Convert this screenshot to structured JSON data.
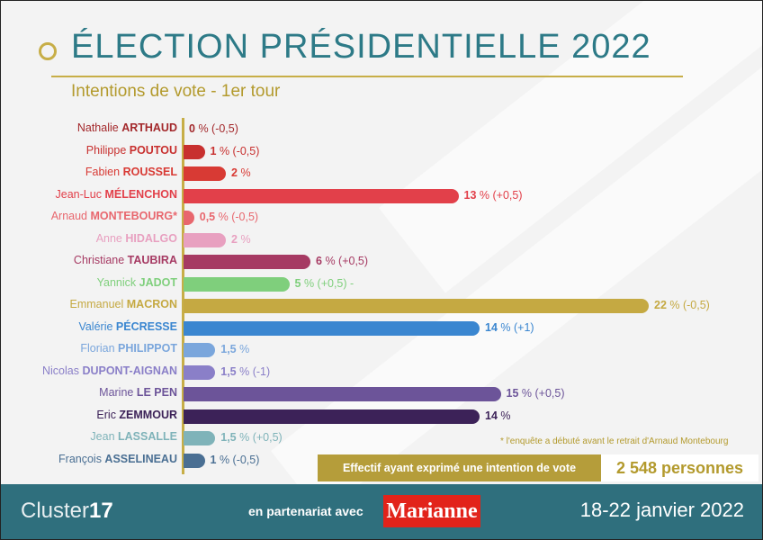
{
  "header": {
    "title": "ÉLECTION PRÉSIDENTIELLE 2022",
    "subtitle": "Intentions de vote - 1er tour"
  },
  "chart_data": {
    "type": "bar",
    "orientation": "horizontal",
    "xlim": [
      0,
      22
    ],
    "categories": [
      "Nathalie ARTHAUD",
      "Philippe POUTOU",
      "Fabien ROUSSEL",
      "Jean-Luc MÉLENCHON",
      "Arnaud MONTEBOURG*",
      "Anne HIDALGO",
      "Christiane TAUBIRA",
      "Yannick JADOT",
      "Emmanuel MACRON",
      "Valérie PÉCRESSE",
      "Florian PHILIPPOT",
      "Nicolas DUPONT-AIGNAN",
      "Marine LE PEN",
      "Eric ZEMMOUR",
      "Jean LASSALLE",
      "François ASSELINEAU"
    ],
    "values": [
      0,
      1,
      2,
      13,
      0.5,
      2,
      6,
      5,
      22,
      14,
      1.5,
      1.5,
      15,
      14,
      1.5,
      1
    ]
  },
  "candidates": [
    {
      "first": "Nathalie",
      "last": "ARTHAUD",
      "pct": "0",
      "delta": "% (-0,5)",
      "color": "#a3282b"
    },
    {
      "first": "Philippe",
      "last": "POUTOU",
      "pct": "1",
      "delta": "% (-0,5)",
      "color": "#c8302f"
    },
    {
      "first": "Fabien",
      "last": "ROUSSEL",
      "pct": "2",
      "delta": "%",
      "color": "#d83a34"
    },
    {
      "first": "Jean-Luc",
      "last": "MÉLENCHON",
      "pct": "13",
      "delta": "% (+0,5)",
      "color": "#e2404a"
    },
    {
      "first": "Arnaud",
      "last": "MONTEBOURG*",
      "pct": "0,5",
      "delta": "% (-0,5)",
      "color": "#e8676e"
    },
    {
      "first": "Anne",
      "last": "HIDALGO",
      "pct": "2",
      "delta": "%",
      "color": "#e8a0c0"
    },
    {
      "first": "Christiane",
      "last": "TAUBIRA",
      "pct": "6",
      "delta": "% (+0,5)",
      "color": "#a63a63"
    },
    {
      "first": "Yannick",
      "last": "JADOT",
      "pct": "5",
      "delta": "% (+0,5) -",
      "color": "#7fcf7c"
    },
    {
      "first": "Emmanuel",
      "last": "MACRON",
      "pct": "22",
      "delta": "% (-0,5)",
      "color": "#c5a942"
    },
    {
      "first": "Valérie",
      "last": "PÉCRESSE",
      "pct": "14",
      "delta": "% (+1)",
      "color": "#3a86d0"
    },
    {
      "first": "Florian",
      "last": "PHILIPPOT",
      "pct": "1,5",
      "delta": "%",
      "color": "#7aa6dc"
    },
    {
      "first": "Nicolas",
      "last": "DUPONT-AIGNAN",
      "pct": "1,5",
      "delta": "% (-1)",
      "color": "#8a7fc8"
    },
    {
      "first": "Marine",
      "last": "LE PEN",
      "pct": "15",
      "delta": "% (+0,5)",
      "color": "#6c5499"
    },
    {
      "first": "Eric",
      "last": "ZEMMOUR",
      "pct": "14",
      "delta": "%",
      "color": "#3c2258"
    },
    {
      "first": "Jean",
      "last": "LASSALLE",
      "pct": "1,5",
      "delta": "% (+0,5)",
      "color": "#7fb3b9"
    },
    {
      "first": "François",
      "last": "ASSELINEAU",
      "pct": "1",
      "delta": "% (-0,5)",
      "color": "#4a6f93"
    }
  ],
  "note": "* l'enquête a débuté avant le retrait d'Arnaud Montebourg",
  "effectif": {
    "label": "Effectif ayant exprimé une intention de vote",
    "value": "2 548 personnes"
  },
  "footer": {
    "logo_text": "Cluster",
    "logo_number": "17",
    "partner_text": "en partenariat avec",
    "partner_logo": "Marianne",
    "dates": "18-22 janvier 2022"
  }
}
